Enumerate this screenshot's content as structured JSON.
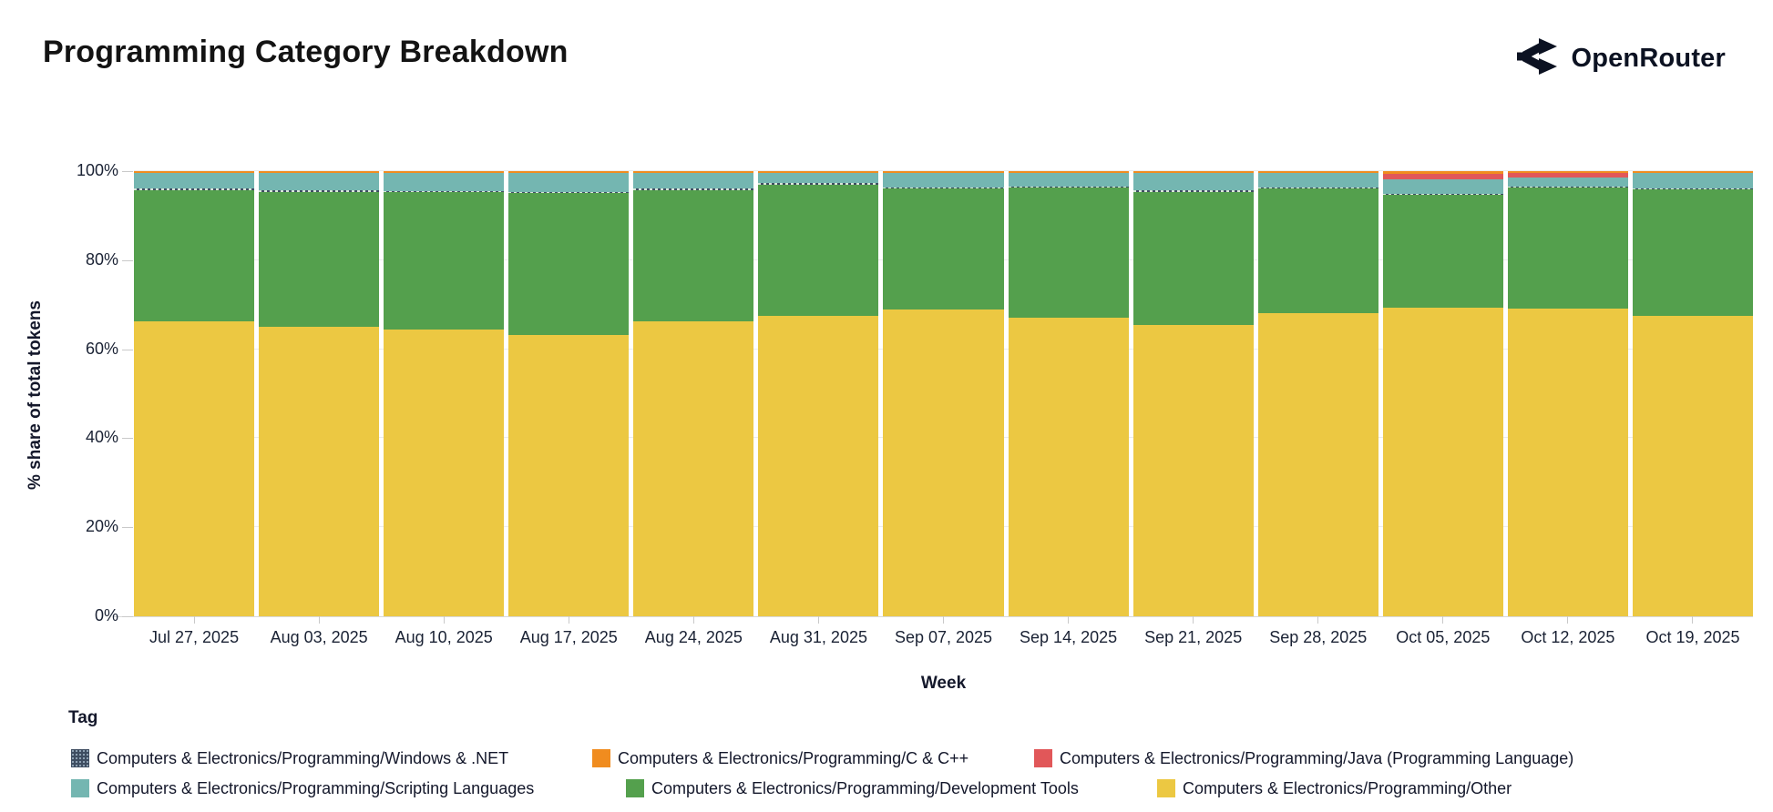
{
  "header": {
    "title": "Programming Category Breakdown",
    "brand": "OpenRouter"
  },
  "y_axis": {
    "title": "% share of total tokens",
    "ticks": [
      "100%",
      "80%",
      "60%",
      "40%",
      "20%",
      "0%"
    ]
  },
  "x_axis": {
    "title": "Week"
  },
  "legend": {
    "title": "Tag",
    "row_series": [
      [
        2,
        5,
        4
      ],
      [
        3,
        1,
        0
      ]
    ]
  },
  "chart_data": {
    "type": "bar",
    "stacked": true,
    "title": "Programming Category Breakdown",
    "xlabel": "Week",
    "ylabel": "% share of total tokens",
    "ylim": [
      0,
      100
    ],
    "y_tick_step": 20,
    "grid": true,
    "legend_position": "bottom",
    "categories": [
      "Jul 27, 2025",
      "Aug 03, 2025",
      "Aug 10, 2025",
      "Aug 17, 2025",
      "Aug 24, 2025",
      "Aug 31, 2025",
      "Sep 07, 2025",
      "Sep 14, 2025",
      "Sep 21, 2025",
      "Sep 28, 2025",
      "Oct 05, 2025",
      "Oct 12, 2025",
      "Oct 19, 2025"
    ],
    "series": [
      {
        "name": "Other",
        "label": "Computers & Electronics/Programming/Other",
        "color": "#ecc842",
        "pattern": "solid",
        "values": [
          66.2,
          65.0,
          64.4,
          63.2,
          66.3,
          67.5,
          68.9,
          67.0,
          65.5,
          68.2,
          69.3,
          69.1,
          67.5
        ]
      },
      {
        "name": "Development Tools",
        "label": "Computers & Electronics/Programming/Development Tools",
        "color": "#54a04d",
        "pattern": "solid",
        "values": [
          29.6,
          30.4,
          30.9,
          31.8,
          29.5,
          29.5,
          27.2,
          29.3,
          29.9,
          27.9,
          25.3,
          27.2,
          28.4
        ]
      },
      {
        "name": "Windows & .NET",
        "label": "Computers & Electronics/Programming/Windows & .NET",
        "color": "#3e4d61",
        "pattern": "dots",
        "values": [
          0.25,
          0.25,
          0.25,
          0.25,
          0.25,
          0.25,
          0.25,
          0.25,
          0.25,
          0.25,
          0.25,
          0.25,
          0.25
        ]
      },
      {
        "name": "Scripting Languages",
        "label": "Computers & Electronics/Programming/Scripting Languages",
        "color": "#74b6b1",
        "pattern": "solid",
        "values": [
          3.55,
          3.95,
          4.05,
          4.35,
          3.55,
          2.35,
          3.25,
          3.05,
          3.95,
          3.25,
          3.35,
          2.1,
          3.45
        ]
      },
      {
        "name": "Java (Programming Language)",
        "label": "Computers & Electronics/Programming/Java (Programming Language)",
        "color": "#e15759",
        "pattern": "solid",
        "values": [
          0.05,
          0.05,
          0.05,
          0.05,
          0.05,
          0.05,
          0.05,
          0.05,
          0.05,
          0.05,
          1.25,
          1.0,
          0.05
        ]
      },
      {
        "name": "C & C++",
        "label": "Computers & Electronics/Programming/C & C++",
        "color": "#f08c1f",
        "pattern": "solid",
        "values": [
          0.35,
          0.35,
          0.35,
          0.35,
          0.35,
          0.35,
          0.35,
          0.35,
          0.35,
          0.35,
          0.55,
          0.35,
          0.35
        ]
      }
    ]
  }
}
